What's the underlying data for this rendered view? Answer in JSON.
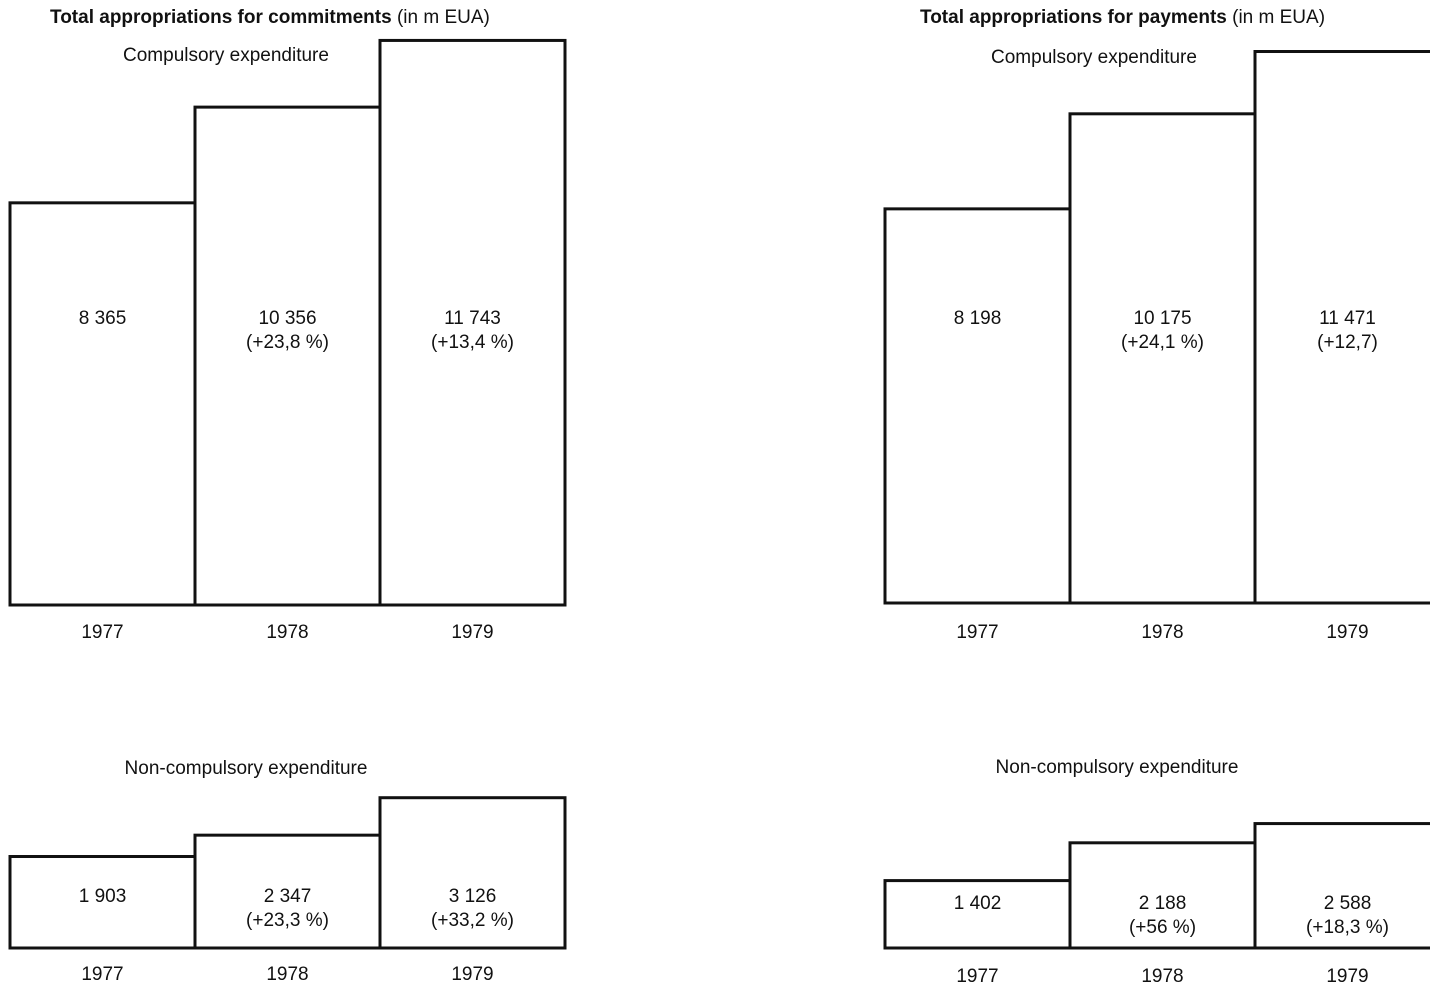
{
  "chart_data": [
    {
      "type": "bar",
      "title": "Total appropriations for commitments",
      "title_unit": "(in m EUA)",
      "subtitle": "Compulsory expenditure",
      "categories": [
        "1977",
        "1978",
        "1979"
      ],
      "values": [
        8365,
        10356,
        11743
      ],
      "value_labels": [
        "8 365",
        "10 356",
        "11 743"
      ],
      "change_labels": [
        null,
        "(+23,8 %)",
        "(+13,4 %)"
      ]
    },
    {
      "type": "bar",
      "subtitle": "Non-compulsory expenditure",
      "categories": [
        "1977",
        "1978",
        "1979"
      ],
      "values": [
        1903,
        2347,
        3126
      ],
      "value_labels": [
        "1 903",
        "2 347",
        "3 126"
      ],
      "change_labels": [
        null,
        "(+23,3 %)",
        "(+33,2 %)"
      ]
    },
    {
      "type": "bar",
      "title": "Total appropriations for payments",
      "title_unit": "(in m EUA)",
      "subtitle": "Compulsory expenditure",
      "categories": [
        "1977",
        "1978",
        "1979"
      ],
      "values": [
        8198,
        10175,
        11471
      ],
      "value_labels": [
        "8 198",
        "10 175",
        "11 471"
      ],
      "change_labels": [
        null,
        "(+24,1 %)",
        "(+12,7)"
      ]
    },
    {
      "type": "bar",
      "subtitle": "Non-compulsory expenditure",
      "categories": [
        "1977",
        "1978",
        "1979"
      ],
      "values": [
        1402,
        2188,
        2588
      ],
      "value_labels": [
        "1 402",
        "2 188",
        "2 588"
      ],
      "change_labels": [
        null,
        "(+56 %)",
        "(+18,3 %)"
      ]
    }
  ]
}
